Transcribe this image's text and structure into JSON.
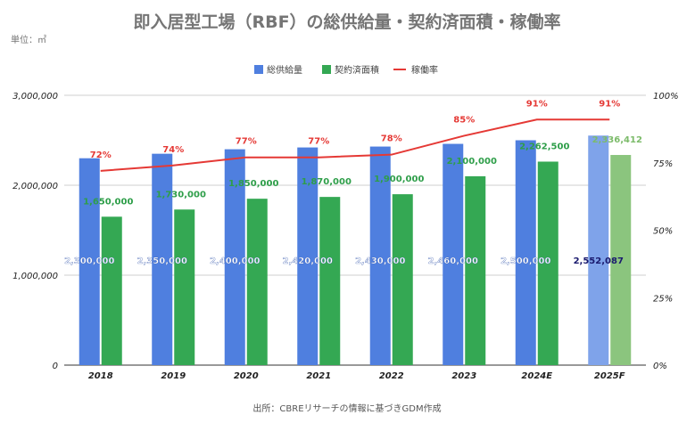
{
  "chart_data": {
    "type": "bar",
    "title": "即入居型工場（RBF）の総供給量・契約済面積・稼働率",
    "unit_label": "単位：㎡",
    "source": "出所：CBREリサーチの情報に基づきGDM作成",
    "categories": [
      "2018",
      "2019",
      "2020",
      "2021",
      "2022",
      "2023",
      "2024E",
      "2025F"
    ],
    "series": [
      {
        "name": "総供給量",
        "kind": "bar",
        "axis": "left",
        "color": "#4f7fdf",
        "projected_color": "#7fa3ea",
        "values": [
          2300000,
          2350000,
          2400000,
          2420000,
          2430000,
          2460000,
          2500000,
          2552087
        ],
        "labels": [
          "2,300,000",
          "2,350,000",
          "2,400,000",
          "2,420,000",
          "2,430,000",
          "2,460,000",
          "2,500,000",
          "2,552,087"
        ]
      },
      {
        "name": "契約済面積",
        "kind": "bar",
        "axis": "left",
        "color": "#34a853",
        "projected_color": "#8bc57e",
        "values": [
          1650000,
          1730000,
          1850000,
          1870000,
          1900000,
          2100000,
          2262500,
          2336412
        ],
        "labels": [
          "1,650,000",
          "1,730,000",
          "1,850,000",
          "1,870,000",
          "1,900,000",
          "2,100,000",
          "2,262,500",
          "2,336,412"
        ]
      },
      {
        "name": "稼働率",
        "kind": "line",
        "axis": "right",
        "color": "#e53935",
        "values": [
          72,
          74,
          77,
          77,
          78,
          85,
          91,
          91
        ],
        "labels": [
          "72%",
          "74%",
          "77%",
          "77%",
          "78%",
          "85%",
          "91%",
          "91%"
        ]
      }
    ],
    "projected_index": 7,
    "y_left": {
      "lim": [
        0,
        3000000
      ],
      "ticks": [
        0,
        1000000,
        2000000,
        3000000
      ],
      "tick_labels": [
        "0",
        "1,000,000",
        "2,000,000",
        "3,000,000"
      ]
    },
    "y_right": {
      "lim": [
        0,
        100
      ],
      "ticks": [
        0,
        25,
        50,
        75,
        100
      ],
      "tick_labels": [
        "0%",
        "25%",
        "50%",
        "75%",
        "100%"
      ]
    },
    "grid": true,
    "legend_position": "top"
  }
}
